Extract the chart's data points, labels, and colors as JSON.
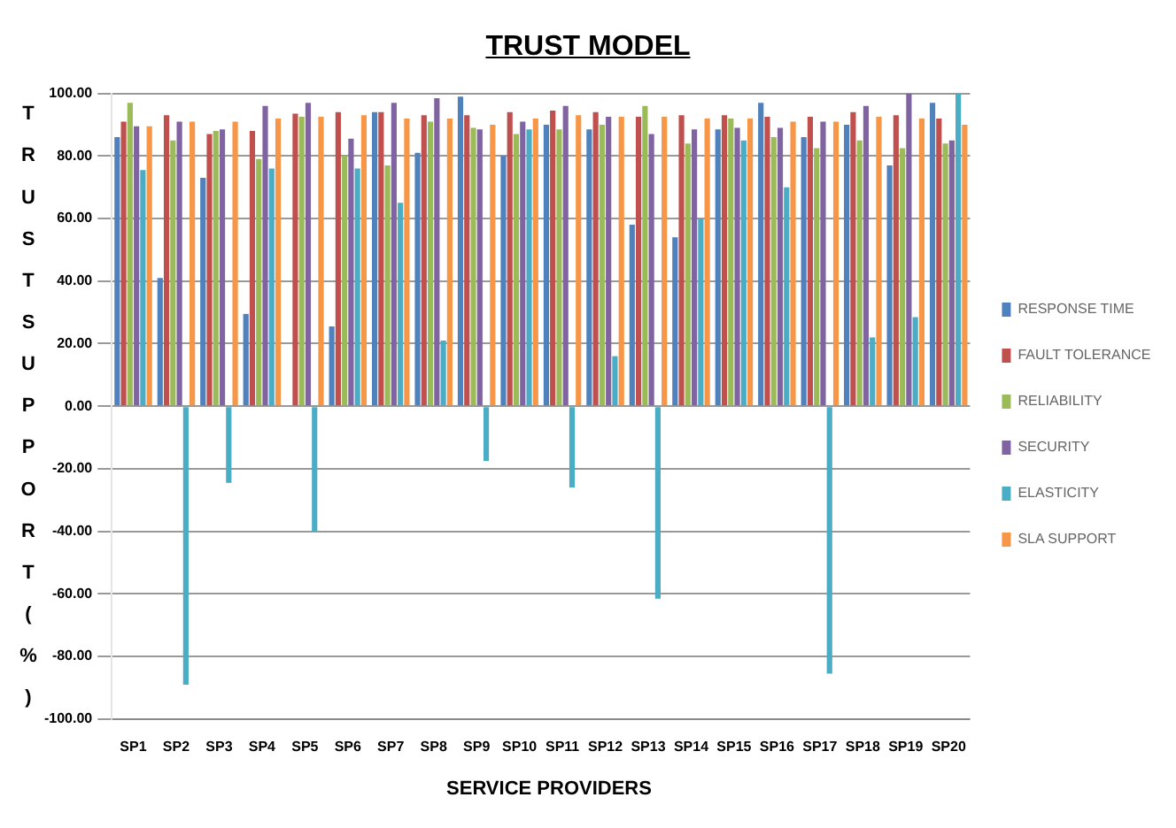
{
  "chart_data": {
    "type": "bar",
    "title": "TRUST MODEL",
    "xlabel": "SERVICE PROVIDERS",
    "ylabel": "TRUST SUPPORT (%)",
    "categories": [
      "SP1",
      "SP2",
      "SP3",
      "SP4",
      "SP5",
      "SP6",
      "SP7",
      "SP8",
      "SP9",
      "SP10",
      "SP11",
      "SP12",
      "SP13",
      "SP14",
      "SP15",
      "SP16",
      "SP17",
      "SP18",
      "SP19",
      "SP20"
    ],
    "series": [
      {
        "name": "RESPONSE TIME",
        "color": "#4f81bd",
        "values": [
          86,
          41,
          73,
          29.5,
          0,
          25.5,
          94,
          81,
          99,
          80,
          90,
          88.5,
          58,
          54,
          88.5,
          97,
          86,
          90,
          77,
          97
        ]
      },
      {
        "name": "FAULT TOLERANCE",
        "color": "#c0504d",
        "values": [
          91,
          93,
          87,
          88,
          93.5,
          94,
          94,
          93,
          93,
          94,
          94.5,
          94,
          92.5,
          93,
          93,
          92.5,
          92.5,
          94,
          93,
          92
        ]
      },
      {
        "name": "RELIABILITY",
        "color": "#9bbb59",
        "values": [
          97,
          85,
          88,
          79,
          92.5,
          80,
          77,
          91,
          89,
          87,
          88.5,
          90,
          96,
          84,
          92,
          86,
          82.5,
          85,
          82.5,
          84
        ]
      },
      {
        "name": "SECURITY",
        "color": "#8064a2",
        "values": [
          89.5,
          91,
          88.5,
          96,
          97,
          85.5,
          97,
          98.5,
          88.5,
          91,
          96,
          92.5,
          87,
          88.5,
          89,
          89,
          91,
          96,
          100,
          85
        ]
      },
      {
        "name": "ELASTICITY",
        "color": "#4bacc6",
        "values": [
          75.5,
          -89,
          -24.5,
          76,
          -40,
          76,
          65,
          21,
          -17.5,
          88.5,
          -26,
          16,
          -61.5,
          60,
          85,
          70,
          -85.5,
          22,
          28.5,
          100
        ]
      },
      {
        "name": "SLA SUPPORT",
        "color": "#f79646",
        "values": [
          89.5,
          91,
          91,
          92,
          92.5,
          93,
          92,
          92,
          90,
          92,
          93,
          92.5,
          92.5,
          92,
          92,
          91,
          91,
          92.5,
          92,
          90
        ]
      }
    ],
    "ylim": [
      -100,
      100
    ],
    "yticks": [
      {
        "value": -100,
        "label": "-100.00"
      },
      {
        "value": -80,
        "label": "-80.00"
      },
      {
        "value": -60,
        "label": "-60.00"
      },
      {
        "value": -40,
        "label": "-40.00"
      },
      {
        "value": -20,
        "label": "-20.00"
      },
      {
        "value": 0,
        "label": "0.00"
      },
      {
        "value": 20,
        "label": "20.00"
      },
      {
        "value": 40,
        "label": "40.00"
      },
      {
        "value": 60,
        "label": "60.00"
      },
      {
        "value": 80,
        "label": "80.00"
      },
      {
        "value": 100,
        "label": "100.00"
      }
    ],
    "grid": "y",
    "legend": "right"
  }
}
